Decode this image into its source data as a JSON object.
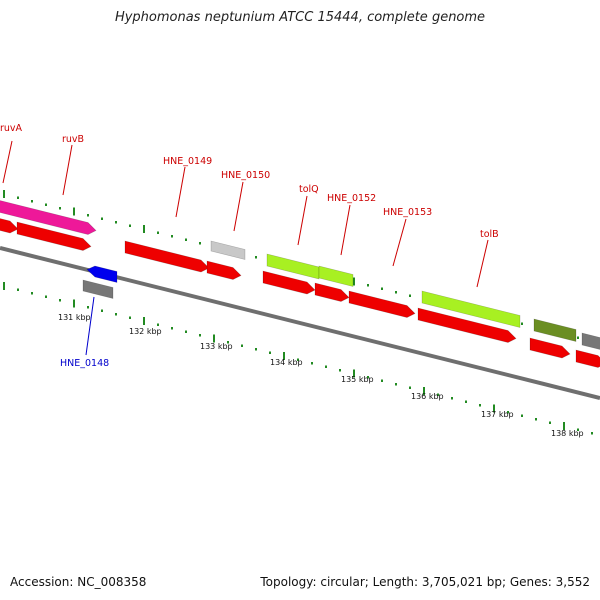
{
  "title": "Hyphomonas neptunium ATCC 15444, complete genome",
  "footer": {
    "accession": "Accession: NC_008358",
    "stats": "Topology: circular; Length: 3,705,021 bp; Genes: 3,552"
  },
  "colors": {
    "label_plus": "#cc0000",
    "label_minus": "#0000cc",
    "cds_red": "#ee0000",
    "pink": "#ee1899",
    "yellow_green": "#a8f022",
    "olive": "#6b8e23",
    "gray": "#777777",
    "light_gray": "#c8c8c8",
    "blue": "#0000ee",
    "tick_green": "#228b22",
    "backbone": "#7a7a7a"
  },
  "gene_labels": [
    {
      "text": "ruvA",
      "strand": "+"
    },
    {
      "text": "ruvB",
      "strand": "+"
    },
    {
      "text": "HNE_0149",
      "strand": "+"
    },
    {
      "text": "HNE_0150",
      "strand": "+"
    },
    {
      "text": "tolQ",
      "strand": "+"
    },
    {
      "text": "HNE_0152",
      "strand": "+"
    },
    {
      "text": "HNE_0153",
      "strand": "+"
    },
    {
      "text": "tolB",
      "strand": "+"
    },
    {
      "text": "HNE_0148",
      "strand": "-"
    }
  ],
  "kbp_labels": [
    "131 kbp",
    "132 kbp",
    "133 kbp",
    "134 kbp",
    "135 kbp",
    "136 kbp",
    "137 kbp",
    "138 kbp"
  ]
}
